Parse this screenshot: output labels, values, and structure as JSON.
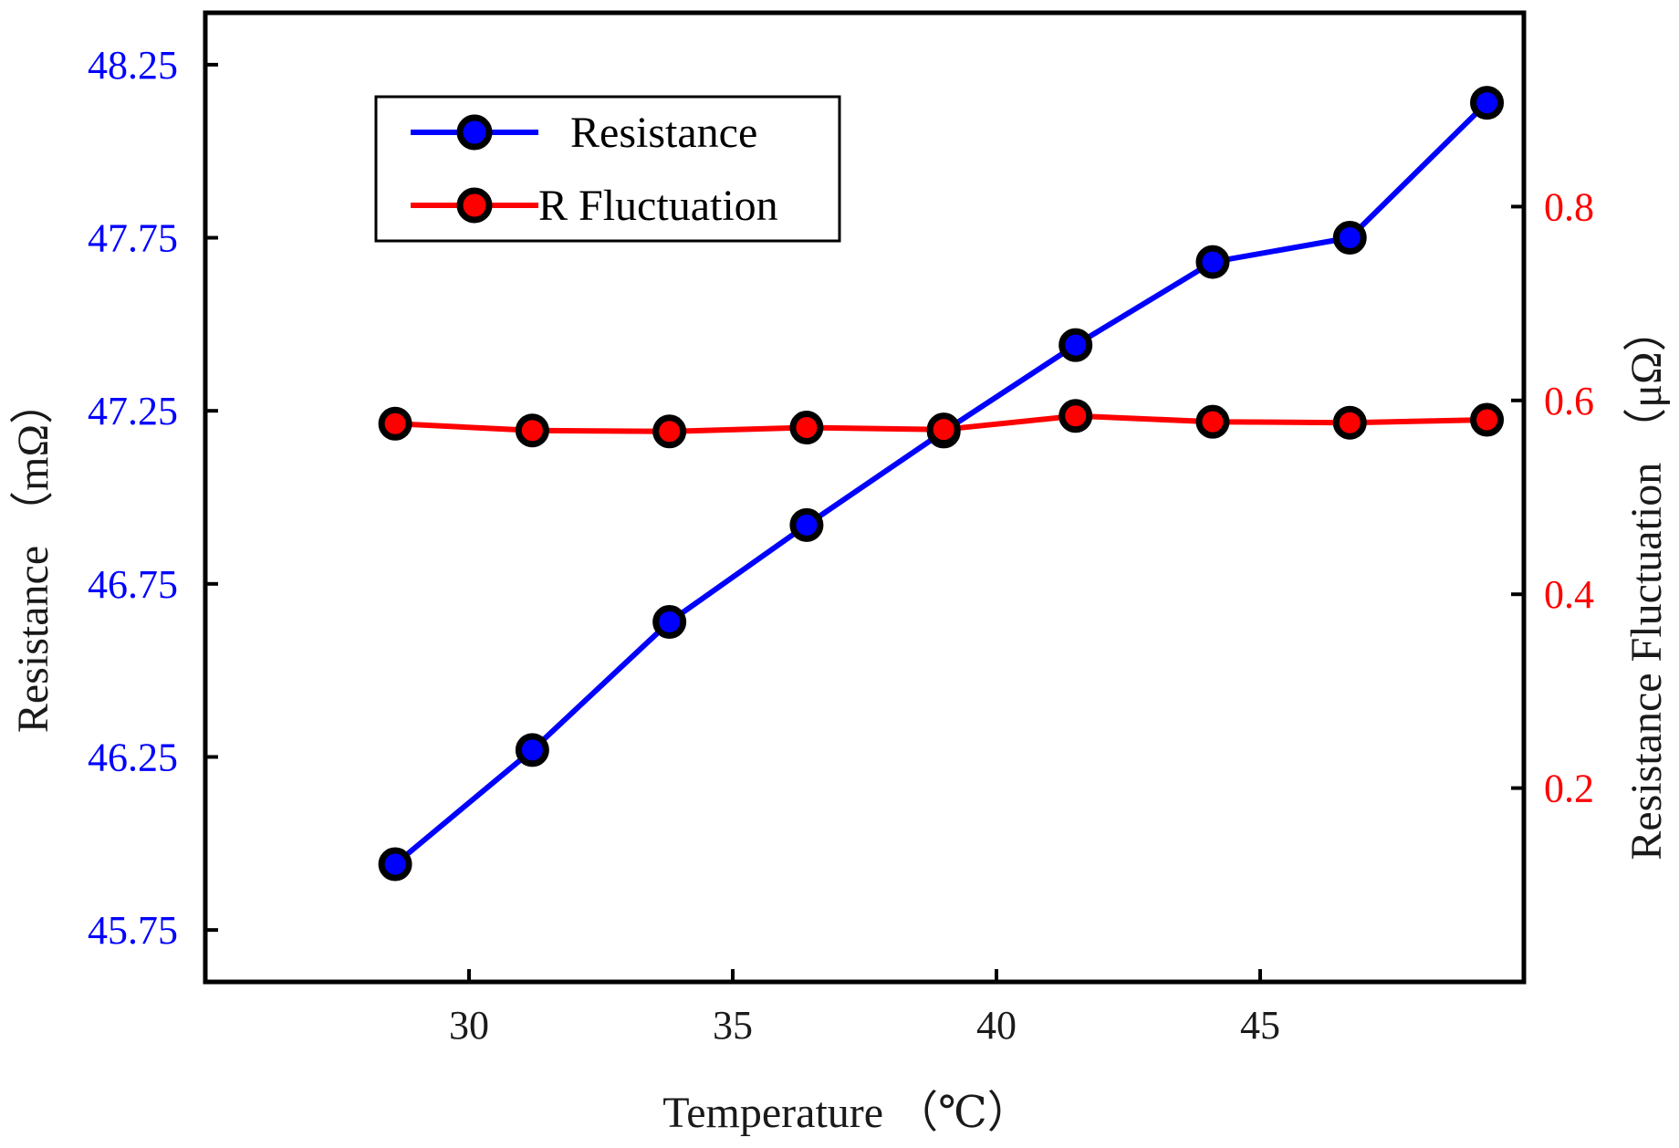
{
  "chart_data": {
    "type": "line",
    "xlabel": "Temperature （℃）",
    "ylabel_left": "Resistance （mΩ）",
    "ylabel_right": "Resistance Fluctuation （μΩ）",
    "xlim": [
      25,
      50
    ],
    "ylim_left": [
      45.6,
      48.4
    ],
    "ylim_right": [
      0,
      1.0
    ],
    "x_ticks": [
      "30",
      "35",
      "40",
      "45"
    ],
    "y_left_ticks": [
      "45.75",
      "46.25",
      "46.75",
      "47.25",
      "47.75",
      "48.25"
    ],
    "y_right_ticks": [
      "0.2",
      "0.4",
      "0.6",
      "0.8"
    ],
    "grid": false,
    "legend_position": "top-left",
    "x": [
      28.6,
      31.2,
      33.8,
      36.4,
      39.0,
      41.5,
      44.1,
      46.7,
      49.3
    ],
    "series": [
      {
        "name": "Resistance",
        "axis": "left",
        "color": "#0000ff",
        "marker_color": "#0000ff",
        "values": [
          45.94,
          46.27,
          46.64,
          46.92,
          47.19,
          47.44,
          47.68,
          47.75,
          48.14
        ]
      },
      {
        "name": "R Fluctuation",
        "axis": "right",
        "color": "#ff0000",
        "marker_color": "#ff0000",
        "values": [
          0.576,
          0.569,
          0.568,
          0.572,
          0.57,
          0.584,
          0.578,
          0.577,
          0.58
        ]
      }
    ],
    "colors": {
      "left_axis": "#0000ff",
      "right_axis": "#ff0000",
      "frame": "#000000"
    }
  }
}
